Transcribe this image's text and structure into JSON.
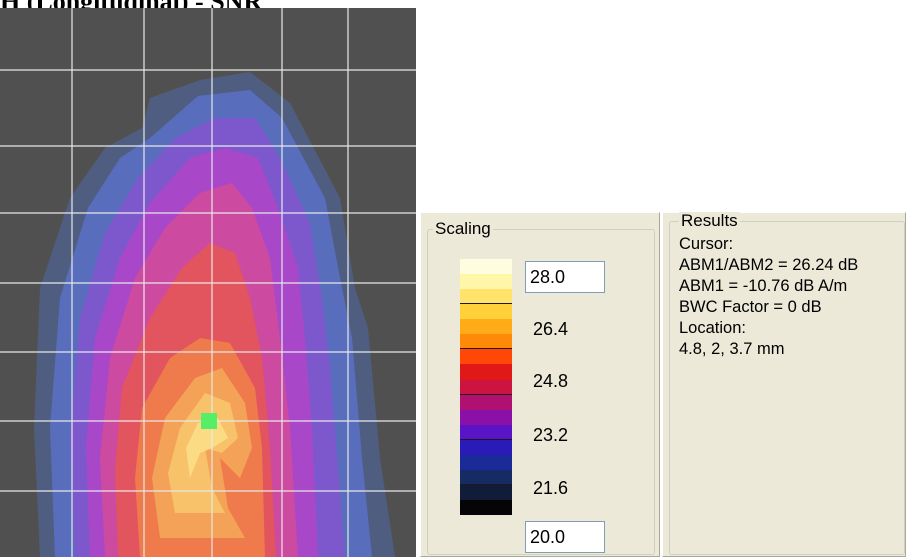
{
  "page": {
    "title": "H (Longitudinal) - SNR"
  },
  "heatmap": {
    "name": "field-distribution-plot",
    "cursor_color": "#55ee66",
    "background_color": "#505050",
    "grid_color": "#e8e8e8"
  },
  "scaling": {
    "legend": "Scaling",
    "max_value": "28.0",
    "min_value": "20.0",
    "ticks": [
      "26.4",
      "24.8",
      "23.2",
      "21.6"
    ],
    "colors": [
      "#fffde0",
      "#fff6a8",
      "#ffe36a",
      "#ffd03a",
      "#ffac18",
      "#ff8a08",
      "#ff4808",
      "#e01818",
      "#cc1440",
      "#b01070",
      "#8a10a8",
      "#5a14c8",
      "#2a1ab8",
      "#1a2a98",
      "#162a64",
      "#101c38",
      "#050508"
    ]
  },
  "results": {
    "legend": "Results",
    "cursor_label": "Cursor:",
    "ratio_line": "ABM1/ABM2 = 26.24 dB",
    "abm1_line": "ABM1 = -10.76 dB A/m",
    "bwc_line": "BWC Factor = 0 dB",
    "location_label": "Location:",
    "location_value": "4.8, 2, 3.7 mm"
  }
}
